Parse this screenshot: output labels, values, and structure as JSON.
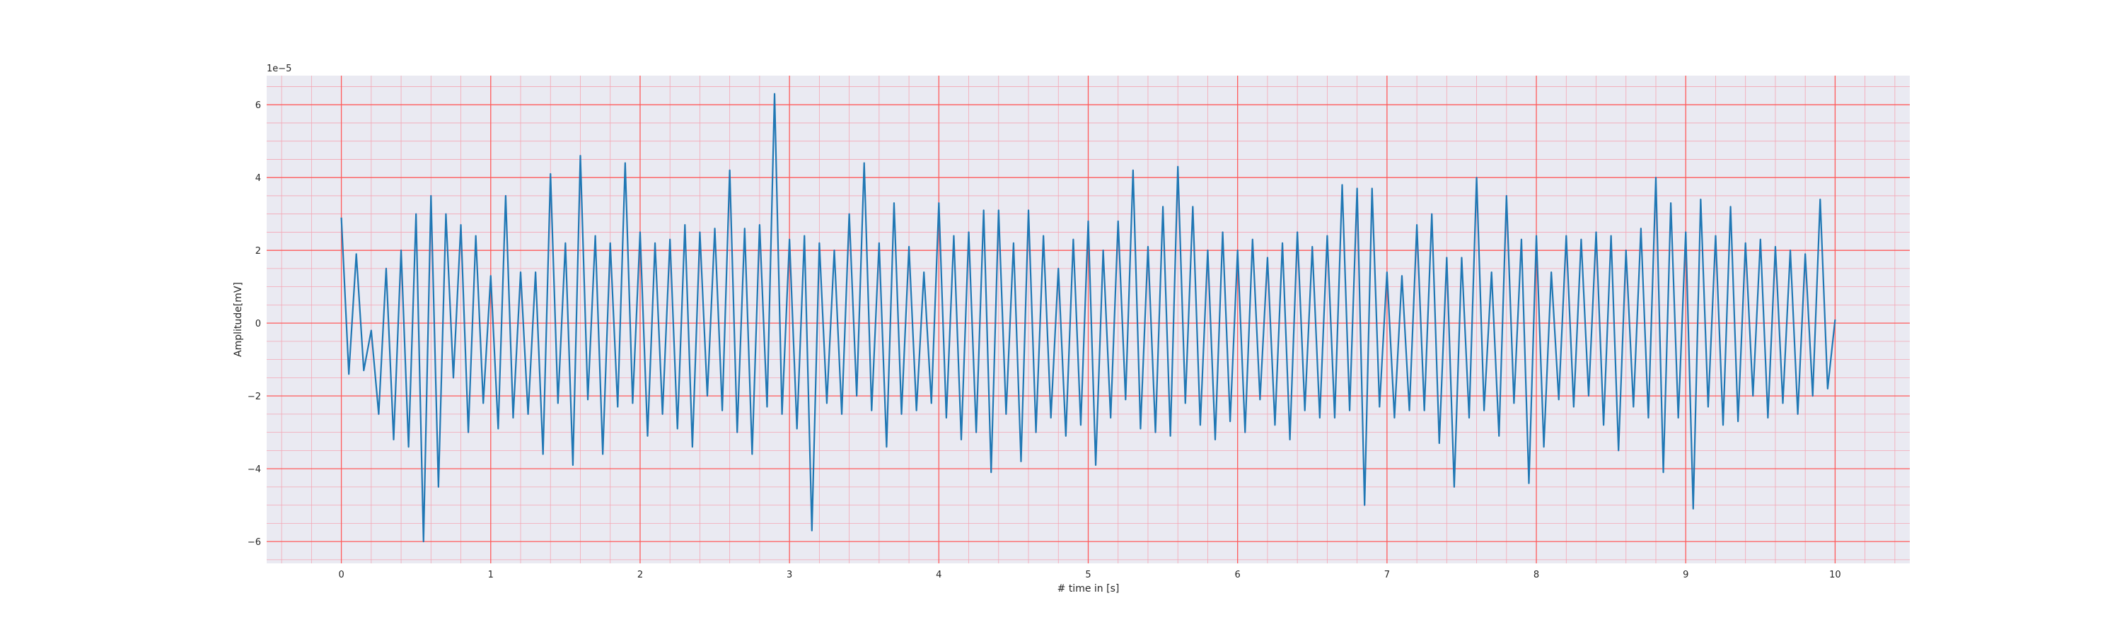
{
  "chart_data": {
    "type": "line",
    "title": "",
    "xlabel": "# time in [s]",
    "ylabel": "Amplitude[mV]",
    "y_offset_text": "1e−5",
    "xlim": [
      -0.5,
      10.5
    ],
    "ylim": [
      -6.6e-05,
      6.8e-05
    ],
    "x_ticks": [
      0,
      1,
      2,
      3,
      4,
      5,
      6,
      7,
      8,
      9,
      10
    ],
    "x_tick_labels": [
      "0",
      "1",
      "2",
      "3",
      "4",
      "5",
      "6",
      "7",
      "8",
      "9",
      "10"
    ],
    "y_ticks": [
      -6e-05,
      -4e-05,
      -2e-05,
      0,
      2e-05,
      4e-05,
      6e-05
    ],
    "y_tick_labels": [
      "−6",
      "−4",
      "−2",
      "0",
      "2",
      "4",
      "6"
    ],
    "grid": {
      "major": true,
      "minor": true,
      "major_color": "#ff5a5a",
      "minor_color": "#f4a6b4"
    },
    "background_color": "#eaeaf2",
    "series": [
      {
        "color": "#1f77b4",
        "x": [
          0,
          0.05,
          0.1,
          0.15,
          0.2,
          0.25,
          0.3,
          0.35,
          0.4,
          0.45,
          0.5,
          0.55,
          0.6,
          0.65,
          0.7,
          0.75,
          0.8,
          0.85,
          0.9,
          0.95,
          1,
          1.05,
          1.1,
          1.15,
          1.2,
          1.25,
          1.3,
          1.35,
          1.4,
          1.45,
          1.5,
          1.55,
          1.6,
          1.65,
          1.7,
          1.75,
          1.8,
          1.85,
          1.9,
          1.95,
          2,
          2.05,
          2.1,
          2.15,
          2.2,
          2.25,
          2.3,
          2.35,
          2.4,
          2.45,
          2.5,
          2.55,
          2.6,
          2.65,
          2.7,
          2.75,
          2.8,
          2.85,
          2.9,
          2.95,
          3,
          3.05,
          3.1,
          3.15,
          3.2,
          3.25,
          3.3,
          3.35,
          3.4,
          3.45,
          3.5,
          3.55,
          3.6,
          3.65,
          3.7,
          3.75,
          3.8,
          3.85,
          3.9,
          3.95,
          4,
          4.05,
          4.1,
          4.15,
          4.2,
          4.25,
          4.3,
          4.35,
          4.4,
          4.45,
          4.5,
          4.55,
          4.6,
          4.65,
          4.7,
          4.75,
          4.8,
          4.85,
          4.9,
          4.95,
          5,
          5.05,
          5.1,
          5.15,
          5.2,
          5.25,
          5.3,
          5.35,
          5.4,
          5.45,
          5.5,
          5.55,
          5.6,
          5.65,
          5.7,
          5.75,
          5.8,
          5.85,
          5.9,
          5.95,
          6,
          6.05,
          6.1,
          6.15,
          6.2,
          6.25,
          6.3,
          6.35,
          6.4,
          6.45,
          6.5,
          6.55,
          6.6,
          6.65,
          6.7,
          6.75,
          6.8,
          6.85,
          6.9,
          6.95,
          7,
          7.05,
          7.1,
          7.15,
          7.2,
          7.25,
          7.3,
          7.35,
          7.4,
          7.45,
          7.5,
          7.55,
          7.6,
          7.65,
          7.7,
          7.75,
          7.8,
          7.85,
          7.9,
          7.95,
          8,
          8.05,
          8.1,
          8.15,
          8.2,
          8.25,
          8.3,
          8.35,
          8.4,
          8.45,
          8.5,
          8.55,
          8.6,
          8.65,
          8.7,
          8.75,
          8.8,
          8.85,
          8.9,
          8.95,
          9,
          9.05,
          9.1,
          9.15,
          9.2,
          9.25,
          9.3,
          9.35,
          9.4,
          9.45,
          9.5,
          9.55,
          9.6,
          9.65,
          9.7,
          9.75,
          9.8,
          9.85,
          9.9,
          9.95,
          10
        ],
        "y": [
          2.9e-05,
          -1.4e-05,
          1.9e-05,
          -1.3e-05,
          -2e-06,
          -2.5e-05,
          1.5e-05,
          -3.2e-05,
          2e-05,
          -3.4e-05,
          3e-05,
          -6e-05,
          3.5e-05,
          -4.5e-05,
          3e-05,
          -1.5e-05,
          2.7e-05,
          -3e-05,
          2.4e-05,
          -2.2e-05,
          1.3e-05,
          -2.9e-05,
          3.5e-05,
          -2.6e-05,
          1.4e-05,
          -2.5e-05,
          1.4e-05,
          -3.6e-05,
          4.1e-05,
          -2.2e-05,
          2.2e-05,
          -3.9e-05,
          4.6e-05,
          -2.1e-05,
          2.4e-05,
          -3.6e-05,
          2.2e-05,
          -2.3e-05,
          4.4e-05,
          -2.2e-05,
          2.5e-05,
          -3.1e-05,
          2.2e-05,
          -2.5e-05,
          2.3e-05,
          -2.9e-05,
          2.7e-05,
          -3.4e-05,
          2.5e-05,
          -2e-05,
          2.6e-05,
          -2.4e-05,
          4.2e-05,
          -3e-05,
          2.6e-05,
          -3.6e-05,
          2.7e-05,
          -2.3e-05,
          6.3e-05,
          -2.5e-05,
          2.3e-05,
          -2.9e-05,
          2.4e-05,
          -5.7e-05,
          2.2e-05,
          -2.2e-05,
          2e-05,
          -2.5e-05,
          3e-05,
          -2e-05,
          4.4e-05,
          -2.4e-05,
          2.2e-05,
          -3.4e-05,
          3.3e-05,
          -2.5e-05,
          2.1e-05,
          -2.4e-05,
          1.4e-05,
          -2.2e-05,
          3.3e-05,
          -2.6e-05,
          2.4e-05,
          -3.2e-05,
          2.5e-05,
          -3e-05,
          3.1e-05,
          -4.1e-05,
          3.1e-05,
          -2.5e-05,
          2.2e-05,
          -3.8e-05,
          3.1e-05,
          -3e-05,
          2.4e-05,
          -2.6e-05,
          1.5e-05,
          -3.1e-05,
          2.3e-05,
          -2.8e-05,
          2.8e-05,
          -3.9e-05,
          2e-05,
          -2.6e-05,
          2.8e-05,
          -2.1e-05,
          4.2e-05,
          -2.9e-05,
          2.1e-05,
          -3e-05,
          3.2e-05,
          -3.1e-05,
          4.3e-05,
          -2.2e-05,
          3.2e-05,
          -2.8e-05,
          2e-05,
          -3.2e-05,
          2.5e-05,
          -2.7e-05,
          2e-05,
          -3e-05,
          2.3e-05,
          -2.1e-05,
          1.8e-05,
          -2.8e-05,
          2.2e-05,
          -3.2e-05,
          2.5e-05,
          -2.4e-05,
          2.1e-05,
          -2.6e-05,
          2.4e-05,
          -2.6e-05,
          3.8e-05,
          -2.4e-05,
          3.7e-05,
          -5e-05,
          3.7e-05,
          -2.3e-05,
          1.4e-05,
          -2.6e-05,
          1.3e-05,
          -2.4e-05,
          2.7e-05,
          -2.4e-05,
          3e-05,
          -3.3e-05,
          1.8e-05,
          -4.5e-05,
          1.8e-05,
          -2.6e-05,
          4e-05,
          -2.4e-05,
          1.4e-05,
          -3.1e-05,
          3.5e-05,
          -2.2e-05,
          2.3e-05,
          -4.4e-05,
          2.4e-05,
          -3.4e-05,
          1.4e-05,
          -2.1e-05,
          2.4e-05,
          -2.3e-05,
          2.3e-05,
          -2e-05,
          2.5e-05,
          -2.8e-05,
          2.4e-05,
          -3.5e-05,
          2e-05,
          -2.3e-05,
          2.6e-05,
          -2.6e-05,
          4e-05,
          -4.1e-05,
          3.3e-05,
          -2.6e-05,
          2.5e-05,
          -5.1e-05,
          3.4e-05,
          -2.3e-05,
          2.4e-05,
          -2.8e-05,
          3.2e-05,
          -2.7e-05,
          2.2e-05,
          -2e-05,
          2.3e-05,
          -2.6e-05,
          2.1e-05,
          -2.2e-05,
          2e-05,
          -2.5e-05,
          1.9e-05,
          -2e-05,
          3.4e-05,
          -1.8e-05,
          1e-06
        ]
      }
    ]
  }
}
